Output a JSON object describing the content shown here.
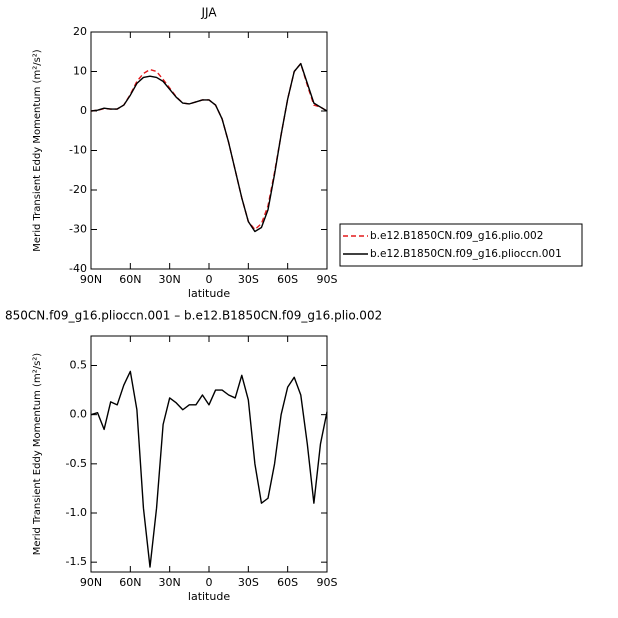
{
  "chart_data": [
    {
      "type": "line",
      "title": "JJA",
      "x_label": "latitude",
      "y_label": "Merid Transient Eddy Momentum (m²/s²)",
      "x": [
        90,
        85,
        80,
        75,
        70,
        65,
        60,
        55,
        50,
        45,
        40,
        35,
        30,
        25,
        20,
        15,
        10,
        5,
        0,
        -5,
        -10,
        -15,
        -20,
        -25,
        -30,
        -35,
        -40,
        -45,
        -50,
        -55,
        -60,
        -65,
        -70,
        -75,
        -80,
        -85,
        -90
      ],
      "xlim": [
        90,
        -90
      ],
      "xticks": [
        {
          "value": 90,
          "label": "90N"
        },
        {
          "value": 60,
          "label": "60N"
        },
        {
          "value": 30,
          "label": "30N"
        },
        0,
        {
          "value": -30,
          "label": "30S"
        },
        {
          "value": -60,
          "label": "60S"
        },
        {
          "value": -90,
          "label": "90S"
        }
      ],
      "ylim": [
        -40,
        20
      ],
      "yticks": [
        20,
        10,
        0,
        -10,
        -20,
        -30,
        -40
      ],
      "legend_position": "right",
      "series": [
        {
          "name": "b.e12.B1850CN.f09_g16.plio.002",
          "color": "#e41a1c",
          "dash": true,
          "values": [
            0,
            0.2,
            0.6,
            0.5,
            0.5,
            1.5,
            4.2,
            7.5,
            9.5,
            10.5,
            10,
            8,
            5.8,
            3.6,
            2,
            1.8,
            2.3,
            2.8,
            2.8,
            1.5,
            -2,
            -8,
            -15,
            -22,
            -28,
            -30,
            -28.5,
            -24,
            -15.5,
            -6,
            3,
            10,
            12,
            6.5,
            1.5,
            1,
            0
          ]
        },
        {
          "name": "b.e12.B1850CN.f09_g16.plioccn.001",
          "color": "#000000",
          "dash": false,
          "values": [
            0,
            0.2,
            0.7,
            0.5,
            0.5,
            1.5,
            4,
            7,
            8.5,
            8.8,
            8.5,
            7.5,
            5.5,
            3.5,
            2,
            1.8,
            2.3,
            2.8,
            2.8,
            1.5,
            -2,
            -8,
            -15,
            -22,
            -28,
            -30.5,
            -29.5,
            -25,
            -16,
            -6,
            3,
            10,
            12,
            7,
            2,
            1,
            0
          ]
        }
      ]
    },
    {
      "type": "line",
      "title": "850CN.f09_g16.plioccn.001 – b.e12.B1850CN.f09_g16.plio.002",
      "x_label": "latitude",
      "y_label": "Merid Transient Eddy Momentum (m²/s²)",
      "x": [
        90,
        85,
        80,
        75,
        70,
        65,
        60,
        55,
        50,
        45,
        40,
        35,
        30,
        25,
        20,
        15,
        10,
        5,
        0,
        -5,
        -10,
        -15,
        -20,
        -25,
        -30,
        -35,
        -40,
        -45,
        -50,
        -55,
        -60,
        -65,
        -70,
        -75,
        -80,
        -85,
        -90
      ],
      "xlim": [
        90,
        -90
      ],
      "xticks": [
        {
          "value": 90,
          "label": "90N"
        },
        {
          "value": 60,
          "label": "60N"
        },
        {
          "value": 30,
          "label": "30N"
        },
        0,
        {
          "value": -30,
          "label": "30S"
        },
        {
          "value": -60,
          "label": "60S"
        },
        {
          "value": -90,
          "label": "90S"
        }
      ],
      "ylim": [
        -1.6,
        0.8
      ],
      "yticks": [
        0.5,
        {
          "value": 0,
          "label": "0.0"
        },
        -0.5,
        {
          "value": -1,
          "label": "-1.0"
        },
        -1.5
      ],
      "series": [
        {
          "color": "#000000",
          "dash": false,
          "values": [
            0,
            0.02,
            -0.15,
            0.13,
            0.1,
            0.3,
            0.44,
            0.05,
            -0.95,
            -1.55,
            -0.95,
            -0.1,
            0.17,
            0.12,
            0.05,
            0.1,
            0.1,
            0.2,
            0.1,
            0.25,
            0.25,
            0.2,
            0.17,
            0.4,
            0.15,
            -0.5,
            -0.9,
            -0.85,
            -0.5,
            0,
            0.28,
            0.38,
            0.2,
            -0.3,
            -0.9,
            -0.3,
            0.03
          ]
        }
      ]
    }
  ]
}
